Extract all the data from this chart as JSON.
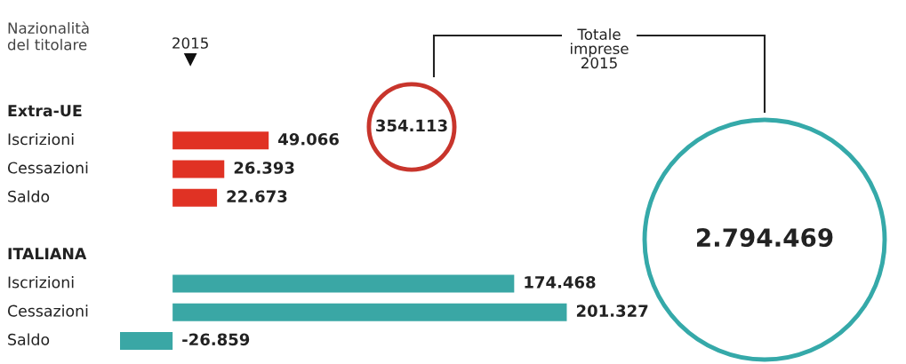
{
  "chart_data": [
    {
      "type": "bar",
      "orientation": "horizontal",
      "ylabel": "Nazionalità\ndel titolare",
      "annotations": [
        "2015"
      ],
      "categories": [
        "Extra-UE",
        "Iscrizioni",
        "Cessazioni",
        "Saldo",
        null,
        "ITALIANA",
        "Iscrizioni",
        "Cessazioni",
        "Saldo"
      ],
      "values": [
        null,
        49066,
        26393,
        22673,
        null,
        null,
        174468,
        201327,
        -26859
      ],
      "value_labels": [
        null,
        "49.066",
        "26.393",
        "22.673",
        null,
        null,
        "174.468",
        "201.327",
        "-26.859"
      ],
      "colors": [
        "#e03224",
        "#e03224",
        "#e03224",
        "#e03224",
        "#3aa7a5",
        "#3aa7a5",
        "#3aa7a5",
        "#3aa7a5",
        "#3aa7a5"
      ]
    },
    {
      "type": "other",
      "title": "Totale\nimprese\n2015",
      "categories": [
        null,
        null
      ],
      "values": [
        354113,
        2794469
      ],
      "value_labels": [
        "354.113",
        "2.794.469"
      ],
      "colors": [
        "#c8352c",
        "#35a9a9"
      ]
    }
  ]
}
